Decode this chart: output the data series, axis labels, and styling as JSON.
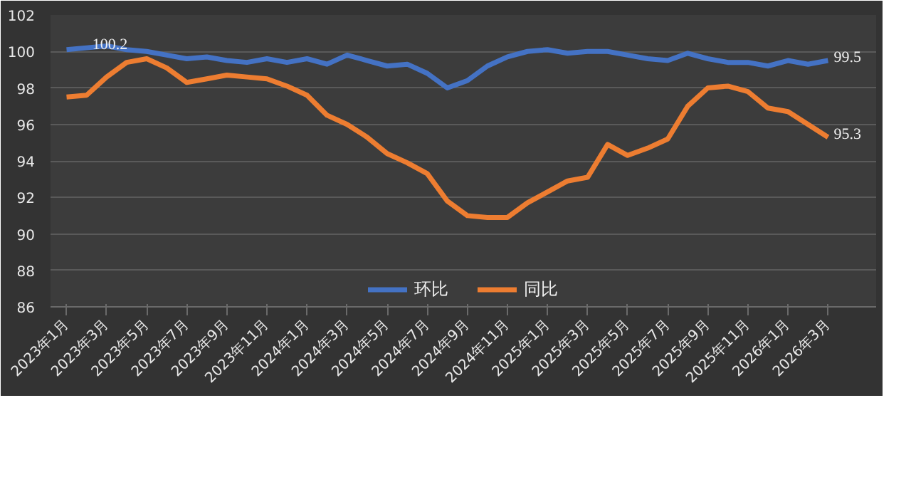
{
  "chart_data": {
    "type": "line",
    "categories": [
      "2023年1月",
      null,
      "2023年3月",
      null,
      "2023年5月",
      null,
      "2023年7月",
      null,
      "2023年9月",
      null,
      "2023年11月",
      null,
      "2024年1月",
      null,
      "2024年3月",
      null,
      "2024年5月",
      null,
      "2024年7月",
      null,
      "2024年9月",
      null,
      "2024年11月",
      null,
      "2025年1月",
      null,
      "2025年3月",
      null,
      "2025年5月",
      null,
      "2025年7月",
      null,
      "2025年9月",
      null,
      "2025年11月",
      null,
      "2026年1月",
      null,
      "2026年3月"
    ],
    "series": [
      {
        "name": "环比",
        "color": "#4472c4",
        "values": [
          100.1,
          100.2,
          100.3,
          100.1,
          100.0,
          99.8,
          99.6,
          99.7,
          99.5,
          99.4,
          99.6,
          99.4,
          99.6,
          99.3,
          99.8,
          99.5,
          99.2,
          99.3,
          98.8,
          98.0,
          98.4,
          99.2,
          99.7,
          100.0,
          100.1,
          99.9,
          100.0,
          100.0,
          99.8,
          99.6,
          99.5,
          99.9,
          99.6,
          99.4,
          99.4,
          99.2,
          99.5,
          99.3,
          99.5
        ],
        "value_labels": [
          null,
          "100.2",
          null,
          null,
          null,
          null,
          null,
          null,
          null,
          null,
          null,
          null,
          null,
          null,
          null,
          null,
          null,
          null,
          null,
          null,
          null,
          null,
          null,
          null,
          null,
          null,
          null,
          null,
          null,
          null,
          null,
          null,
          null,
          null,
          null,
          null,
          null,
          null,
          "99.5"
        ]
      },
      {
        "name": "同比",
        "color": "#ed7d31",
        "values": [
          97.5,
          97.6,
          98.6,
          99.4,
          99.6,
          99.1,
          98.3,
          98.5,
          98.7,
          98.6,
          98.5,
          98.1,
          97.6,
          96.5,
          96.0,
          95.3,
          94.4,
          93.9,
          93.3,
          91.8,
          91.0,
          90.9,
          90.9,
          91.7,
          92.3,
          92.9,
          93.1,
          94.9,
          94.3,
          94.7,
          95.2,
          97.0,
          98.0,
          98.1,
          97.8,
          96.9,
          96.7,
          96.0,
          95.3
        ],
        "value_labels": [
          null,
          null,
          null,
          null,
          null,
          null,
          null,
          null,
          null,
          null,
          null,
          null,
          null,
          null,
          null,
          null,
          null,
          null,
          null,
          null,
          null,
          null,
          null,
          null,
          null,
          null,
          null,
          null,
          null,
          null,
          null,
          null,
          null,
          null,
          null,
          null,
          null,
          null,
          "95.3"
        ]
      }
    ],
    "ylim": [
      86,
      102
    ],
    "yticks": [
      86,
      88,
      90,
      92,
      94,
      96,
      98,
      100,
      102
    ],
    "grid": "y",
    "legend": "bottom",
    "marker": "none",
    "line_style": "solid"
  }
}
